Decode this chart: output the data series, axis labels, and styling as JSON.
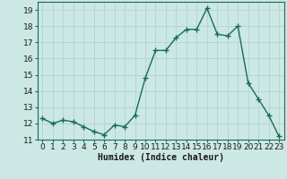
{
  "x": [
    0,
    1,
    2,
    3,
    4,
    5,
    6,
    7,
    8,
    9,
    10,
    11,
    12,
    13,
    14,
    15,
    16,
    17,
    18,
    19,
    20,
    21,
    22,
    23
  ],
  "y": [
    12.3,
    12.0,
    12.2,
    12.1,
    11.8,
    11.5,
    11.3,
    11.9,
    11.8,
    12.5,
    14.8,
    16.5,
    16.5,
    17.3,
    17.8,
    17.8,
    19.1,
    17.5,
    17.4,
    18.0,
    14.5,
    13.5,
    12.5,
    11.2
  ],
  "line_color": "#1a6b5a",
  "marker": "+",
  "markersize": 4,
  "linewidth": 1.0,
  "xlabel": "Humidex (Indice chaleur)",
  "xlim": [
    -0.5,
    23.5
  ],
  "ylim": [
    11,
    19.5
  ],
  "yticks": [
    11,
    12,
    13,
    14,
    15,
    16,
    17,
    18,
    19
  ],
  "xticks": [
    0,
    1,
    2,
    3,
    4,
    5,
    6,
    7,
    8,
    9,
    10,
    11,
    12,
    13,
    14,
    15,
    16,
    17,
    18,
    19,
    20,
    21,
    22,
    23
  ],
  "bg_color": "#cce8e4",
  "grid_color": "#b0d4ce",
  "font_color": "#1a1a1a",
  "xlabel_fontsize": 7,
  "tick_fontsize": 6.5
}
